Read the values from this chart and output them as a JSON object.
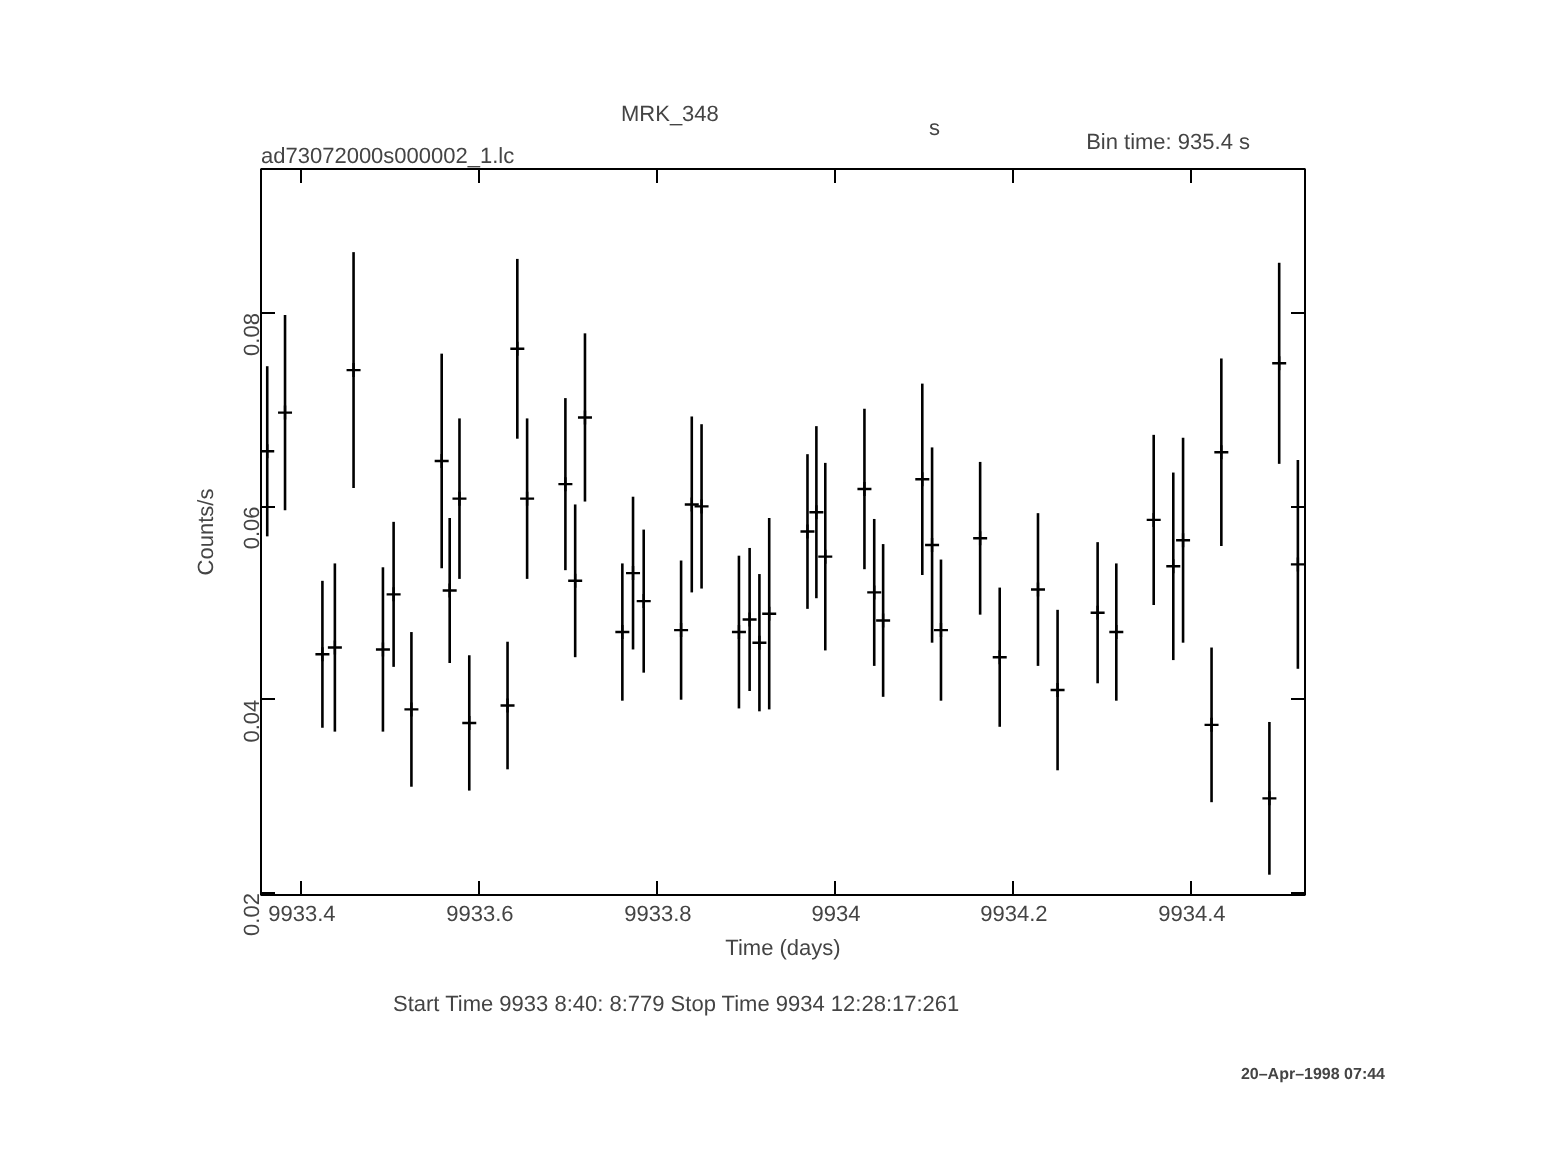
{
  "chart_data": {
    "type": "scatter",
    "title": "MRK_348",
    "xlabel": "Time (days)",
    "ylabel": "Counts/s",
    "annotations": [
      "s",
      "ad73072000s000002_1.lc",
      "Bin time:    935.4       s",
      "Start Time  9933  8:40: 8:779      Stop Time  9934 12:28:17:261",
      "20–Apr–1998 07:44"
    ],
    "x": [
      9933.361,
      9933.381,
      9933.423,
      9933.437,
      9933.458,
      9933.491,
      9933.503,
      9933.523,
      9933.557,
      9933.566,
      9933.577,
      9933.588,
      9933.631,
      9933.642,
      9933.653,
      9933.696,
      9933.707,
      9933.718,
      9933.76,
      9933.772,
      9933.784,
      9933.826,
      9933.838,
      9933.849,
      9933.891,
      9933.903,
      9933.914,
      9933.925,
      9933.968,
      9933.978,
      9933.988,
      9934.032,
      9934.043,
      9934.053,
      9934.097,
      9934.108,
      9934.118,
      9934.162,
      9934.184,
      9934.227,
      9934.249,
      9934.294,
      9934.315,
      9934.357,
      9934.379,
      9934.39,
      9934.422,
      9934.433,
      9934.487,
      9934.498,
      9934.519
    ],
    "series": [
      {
        "color": "#000000",
        "values": [
          0.0657,
          0.0697,
          0.0447,
          0.0454,
          0.0741,
          0.0452,
          0.0509,
          0.039,
          0.0647,
          0.0513,
          0.0608,
          0.0376,
          0.0394,
          0.0763,
          0.0608,
          0.0623,
          0.0523,
          0.0692,
          0.047,
          0.0531,
          0.0502,
          0.0472,
          0.0602,
          0.06,
          0.047,
          0.0483,
          0.0459,
          0.0489,
          0.0574,
          0.0594,
          0.0548,
          0.0618,
          0.0511,
          0.0482,
          0.0628,
          0.056,
          0.0472,
          0.0567,
          0.0444,
          0.0514,
          0.041,
          0.049,
          0.047,
          0.0586,
          0.0538,
          0.0565,
          0.0374,
          0.0656,
          0.0298,
          0.0748,
          0.054
        ],
        "errors": [
          0.0088,
          0.0101,
          0.0076,
          0.0087,
          0.0122,
          0.0085,
          0.0075,
          0.008,
          0.0111,
          0.0075,
          0.0083,
          0.007,
          0.0066,
          0.0093,
          0.0083,
          0.0089,
          0.0079,
          0.0087,
          0.0071,
          0.0079,
          0.0074,
          0.0072,
          0.0091,
          0.0085,
          0.0079,
          0.0074,
          0.0071,
          0.0099,
          0.008,
          0.0089,
          0.0097,
          0.0083,
          0.0076,
          0.0079,
          0.0099,
          0.0101,
          0.0073,
          0.0079,
          0.0072,
          0.0079,
          0.0083,
          0.0073,
          0.0071,
          0.0088,
          0.0097,
          0.0106,
          0.008,
          0.0097,
          0.0079,
          0.0104,
          0.0108
        ]
      }
    ],
    "xlim": [
      9933.354,
      9934.527
    ],
    "xticks": [
      9933.4,
      9933.6,
      9933.8,
      9934,
      9934.2,
      9934.4
    ],
    "ylim": [
      0.0198,
      0.0949
    ],
    "yticks": [
      0.02,
      0.04,
      0.06,
      0.08
    ],
    "marker": "cross",
    "grid": false
  }
}
